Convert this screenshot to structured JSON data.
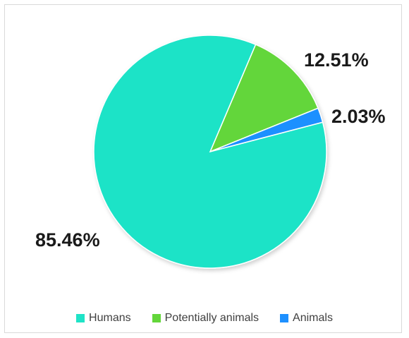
{
  "chart_data": {
    "type": "pie",
    "title": "",
    "categories": [
      "Humans",
      "Potentially animals",
      "Animals"
    ],
    "values": [
      85.46,
      12.51,
      2.03
    ],
    "value_labels": [
      "85.46%",
      "12.51%",
      "2.03%"
    ],
    "colors": [
      "#1fe3c7",
      "#63d63a",
      "#1e90ff"
    ],
    "legend_position": "bottom"
  }
}
